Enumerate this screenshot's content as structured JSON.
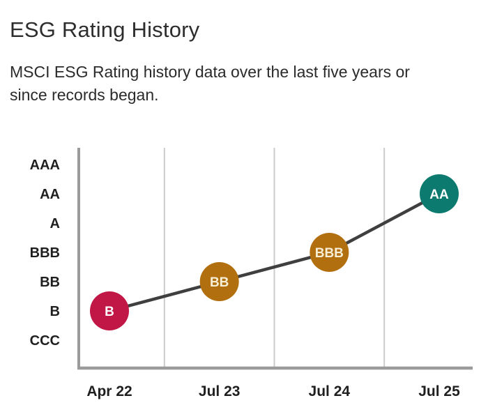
{
  "header": {
    "title": "ESG Rating History",
    "subtitle_line1": "MSCI ESG Rating history data over the last five years or",
    "subtitle_line2": "since records began."
  },
  "chart_data": {
    "type": "line",
    "title": "ESG Rating History",
    "categories": [
      "Apr 22",
      "Jul 23",
      "Jul 24",
      "Jul 25"
    ],
    "y_scale_top_to_bottom": [
      "AAA",
      "AA",
      "A",
      "BBB",
      "BB",
      "B",
      "CCC"
    ],
    "points": [
      {
        "x": "Apr 22",
        "rating": "B",
        "color": "#C01747",
        "label_color": "#FFFFFF"
      },
      {
        "x": "Jul 23",
        "rating": "BB",
        "color": "#B26F10",
        "label_color": "#F7EED6"
      },
      {
        "x": "Jul 24",
        "rating": "BBB",
        "color": "#B26F10",
        "label_color": "#F7EED6"
      },
      {
        "x": "Jul 25",
        "rating": "AA",
        "color": "#0D7A6F",
        "label_color": "#FFFFFF"
      }
    ],
    "grid": true,
    "legend": "none",
    "colors": {
      "trend_line": "#3F3F3F",
      "axis": "#9B9B9B",
      "gridline": "#CBCBCB",
      "tick_labels": "#1F1F1F",
      "title_text": "#2d2d2d",
      "background": "#FFFFFF"
    }
  }
}
